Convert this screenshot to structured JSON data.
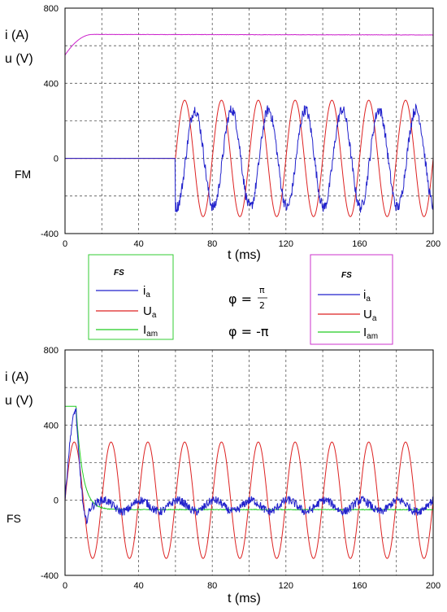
{
  "colors": {
    "ia": "#2222cc",
    "ua": "#dd2222",
    "iam": "#22cc22",
    "u_top": "#cc22cc",
    "frame_green": "#33cc33",
    "frame_magenta": "#cc33cc"
  },
  "top_y_labels": [
    "i (A)",
    "u (V)"
  ],
  "bottom_y_labels": [
    "i (A)",
    "u (V)"
  ],
  "legends": [
    {
      "title": "FS",
      "items": [
        {
          "label": "i",
          "sub": "a"
        },
        {
          "label": "U",
          "sub": "a"
        },
        {
          "label": "I",
          "sub": "am"
        }
      ]
    },
    {
      "title": "FS",
      "items": [
        {
          "label": "i",
          "sub": "a"
        },
        {
          "label": "U",
          "sub": "a"
        },
        {
          "label": "I",
          "sub": "am"
        }
      ]
    }
  ],
  "phase_labels": {
    "phi1_left": "φ = ",
    "phi1_num": "π",
    "phi1_den": "2",
    "phi2": "φ = -π"
  },
  "chart_data": [
    {
      "type": "line",
      "side_label": "FM",
      "xlabel": "t (ms)",
      "xlim": [
        0,
        200
      ],
      "ylim": [
        -400,
        800
      ],
      "x_ticks": [
        0,
        40,
        80,
        120,
        160,
        200
      ],
      "y_ticks": [
        -400,
        0,
        400,
        800
      ],
      "grid": true,
      "series": [
        {
          "name": "u",
          "color_key": "u_top",
          "kind": "step_rise",
          "start": 550,
          "end": 660,
          "rise_ms": 15
        },
        {
          "name": "U_a",
          "color_key": "ua",
          "kind": "sine",
          "amplitude": 310,
          "period_ms": 20,
          "start_ms": 60,
          "phase_deg": 0
        },
        {
          "name": "i_a",
          "color_key": "ia",
          "kind": "noisy_sine",
          "amplitude": 260,
          "period_ms": 20,
          "start_ms": 60,
          "phase_deg": -100
        }
      ]
    },
    {
      "type": "line",
      "side_label": "FS",
      "xlabel": "t (ms)",
      "xlim": [
        0,
        200
      ],
      "ylim": [
        -400,
        800
      ],
      "x_ticks": [
        0,
        40,
        80,
        120,
        160,
        200
      ],
      "y_ticks": [
        -400,
        0,
        400,
        800
      ],
      "grid": true,
      "series": [
        {
          "name": "U_a",
          "color_key": "ua",
          "kind": "sine",
          "amplitude": 310,
          "period_ms": 20,
          "start_ms": 0,
          "phase_deg": 0
        },
        {
          "name": "I_am",
          "color_key": "iam",
          "kind": "decay",
          "peak": 500,
          "settle": -50,
          "peak_ms": 6
        },
        {
          "name": "i_a",
          "color_key": "ia",
          "kind": "transient",
          "peak": 480,
          "peak_ms": 6,
          "settle": -30,
          "ripple": 50,
          "period_ms": 20
        }
      ]
    }
  ]
}
